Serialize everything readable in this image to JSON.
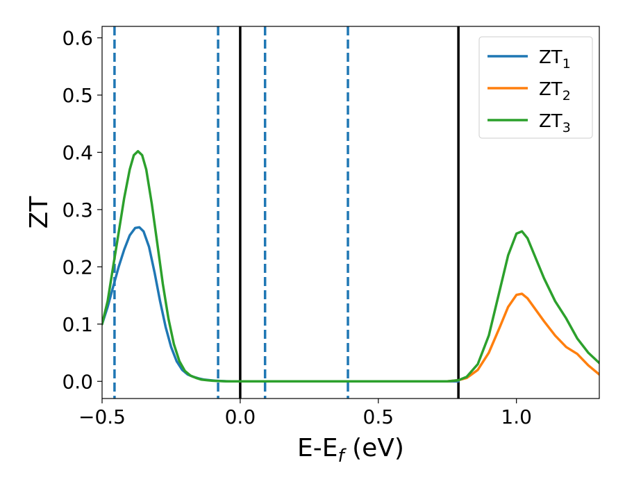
{
  "chart_data": {
    "type": "line",
    "title": "",
    "xlabel": {
      "main": "E-E",
      "sub": "f",
      "tail": " (eV)"
    },
    "ylabel": "ZT",
    "xlim": [
      -0.5,
      1.3
    ],
    "ylim": [
      -0.03,
      0.62
    ],
    "xticks": [
      -0.5,
      0.0,
      0.5,
      1.0
    ],
    "xtick_labels": [
      "−0.5",
      "0.0",
      "0.5",
      "1.0"
    ],
    "yticks": [
      0.0,
      0.1,
      0.2,
      0.3,
      0.4,
      0.5,
      0.6
    ],
    "ytick_labels": [
      "0.0",
      "0.1",
      "0.2",
      "0.3",
      "0.4",
      "0.5",
      "0.6"
    ],
    "grid": false,
    "legend_position": "top-right",
    "vlines": [
      {
        "x": -0.455,
        "style": "dashed",
        "color": "#1f77b4"
      },
      {
        "x": -0.08,
        "style": "dashed",
        "color": "#1f77b4"
      },
      {
        "x": 0.0,
        "style": "solid",
        "color": "#000000"
      },
      {
        "x": 0.09,
        "style": "dashed",
        "color": "#1f77b4"
      },
      {
        "x": 0.39,
        "style": "dashed",
        "color": "#1f77b4"
      },
      {
        "x": 0.79,
        "style": "solid",
        "color": "#000000"
      }
    ],
    "series": [
      {
        "name": "ZT",
        "sub": "1",
        "color": "#1f77b4",
        "x": [
          -0.5,
          -0.48,
          -0.46,
          -0.44,
          -0.42,
          -0.4,
          -0.38,
          -0.365,
          -0.35,
          -0.33,
          -0.31,
          -0.29,
          -0.27,
          -0.25,
          -0.23,
          -0.21,
          -0.19,
          -0.17,
          -0.15,
          -0.13,
          -0.11,
          -0.09,
          -0.07,
          -0.05,
          -0.03,
          0.0,
          0.2,
          0.4,
          0.6,
          0.75,
          0.79
        ],
        "y": [
          0.1,
          0.13,
          0.165,
          0.2,
          0.23,
          0.255,
          0.268,
          0.269,
          0.262,
          0.235,
          0.19,
          0.14,
          0.095,
          0.06,
          0.035,
          0.02,
          0.012,
          0.008,
          0.005,
          0.003,
          0.002,
          0.001,
          0.0005,
          0.0002,
          0.0,
          0.0,
          0.0,
          0.0,
          0.0,
          0.0,
          0.0
        ]
      },
      {
        "name": "ZT",
        "sub": "2",
        "color": "#ff7f0e",
        "x": [
          0.6,
          0.75,
          0.79,
          0.82,
          0.86,
          0.9,
          0.94,
          0.97,
          1.0,
          1.02,
          1.04,
          1.07,
          1.1,
          1.14,
          1.18,
          1.22,
          1.26,
          1.3
        ],
        "y": [
          0.0,
          0.0,
          0.002,
          0.006,
          0.02,
          0.05,
          0.095,
          0.13,
          0.151,
          0.153,
          0.145,
          0.125,
          0.105,
          0.08,
          0.06,
          0.048,
          0.028,
          0.012
        ]
      },
      {
        "name": "ZT",
        "sub": "3",
        "color": "#2ca02c",
        "x": [
          -0.5,
          -0.48,
          -0.46,
          -0.44,
          -0.42,
          -0.4,
          -0.385,
          -0.37,
          -0.355,
          -0.34,
          -0.32,
          -0.3,
          -0.28,
          -0.26,
          -0.24,
          -0.22,
          -0.2,
          -0.18,
          -0.16,
          -0.14,
          -0.12,
          -0.1,
          -0.08,
          -0.05,
          0.0,
          0.2,
          0.4,
          0.6,
          0.75,
          0.79,
          0.82,
          0.86,
          0.9,
          0.94,
          0.97,
          1.0,
          1.02,
          1.04,
          1.07,
          1.1,
          1.14,
          1.18,
          1.22,
          1.26,
          1.3
        ],
        "y": [
          0.1,
          0.14,
          0.2,
          0.26,
          0.32,
          0.37,
          0.395,
          0.402,
          0.395,
          0.37,
          0.31,
          0.24,
          0.17,
          0.11,
          0.065,
          0.035,
          0.018,
          0.01,
          0.006,
          0.003,
          0.002,
          0.001,
          0.0005,
          0.0,
          0.0,
          0.0,
          0.0,
          0.0,
          0.0,
          0.002,
          0.008,
          0.03,
          0.08,
          0.16,
          0.22,
          0.258,
          0.262,
          0.25,
          0.215,
          0.18,
          0.14,
          0.11,
          0.075,
          0.05,
          0.032
        ]
      }
    ]
  }
}
